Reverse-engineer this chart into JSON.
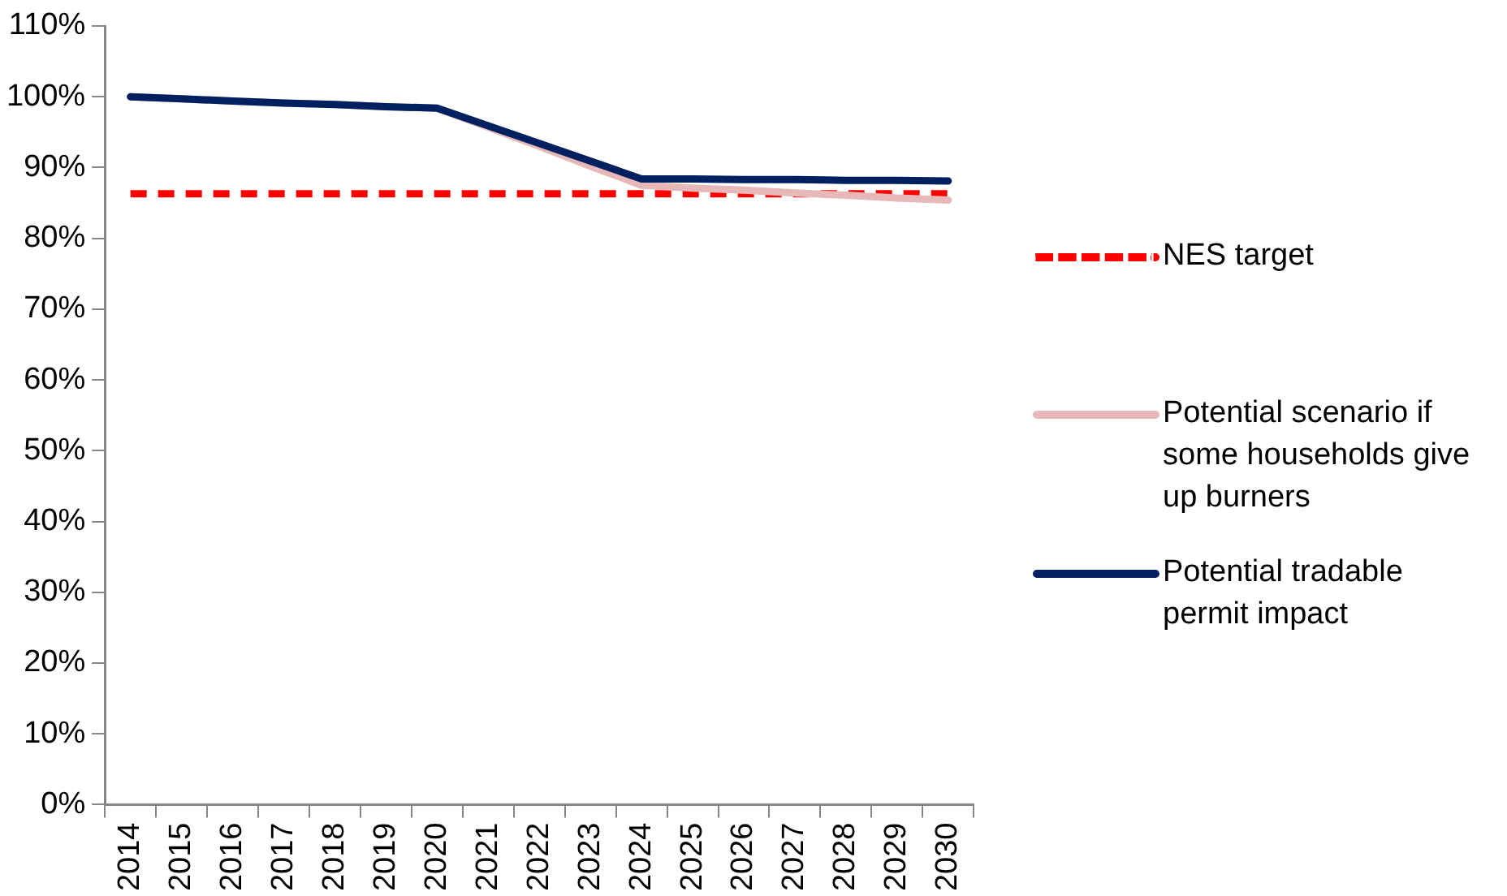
{
  "chart_data": {
    "type": "line",
    "categories": [
      "2014",
      "2015",
      "2016",
      "2017",
      "2018",
      "2019",
      "2020",
      "2021",
      "2022",
      "2023",
      "2024",
      "2025",
      "2026",
      "2027",
      "2028",
      "2029",
      "2030"
    ],
    "series": [
      {
        "name": "NES target",
        "color": "#ff0000",
        "line_style": "dashed",
        "values": [
          86.3,
          86.3,
          86.3,
          86.3,
          86.3,
          86.3,
          86.3,
          86.3,
          86.3,
          86.3,
          86.3,
          86.3,
          86.3,
          86.3,
          86.3,
          86.3,
          86.3
        ]
      },
      {
        "name": "Potential scenario if some households give up burners",
        "color": "#e6b9b8",
        "values": [
          100,
          99.7,
          99.4,
          99.1,
          98.9,
          98.6,
          98.4,
          95.7,
          93.0,
          90.2,
          87.5,
          87.1,
          86.8,
          86.4,
          86.1,
          85.7,
          85.4
        ]
      },
      {
        "name": "Potential tradable permit impact",
        "color": "#002060",
        "values": [
          100,
          99.7,
          99.4,
          99.1,
          98.9,
          98.6,
          98.4,
          95.9,
          93.4,
          90.9,
          88.4,
          88.4,
          88.3,
          88.3,
          88.2,
          88.2,
          88.1
        ]
      }
    ],
    "ylim": [
      0,
      110
    ],
    "yticks": [
      {
        "value": 0,
        "label": "0%"
      },
      {
        "value": 10,
        "label": "10%"
      },
      {
        "value": 20,
        "label": "20%"
      },
      {
        "value": 30,
        "label": "30%"
      },
      {
        "value": 40,
        "label": "40%"
      },
      {
        "value": 50,
        "label": "50%"
      },
      {
        "value": 60,
        "label": "60%"
      },
      {
        "value": 70,
        "label": "70%"
      },
      {
        "value": 80,
        "label": "80%"
      },
      {
        "value": 90,
        "label": "90%"
      },
      {
        "value": 100,
        "label": "100%"
      },
      {
        "value": 110,
        "label": "110%"
      }
    ],
    "grid": false,
    "legend": "right",
    "marker": "none",
    "line_style": "solid"
  }
}
